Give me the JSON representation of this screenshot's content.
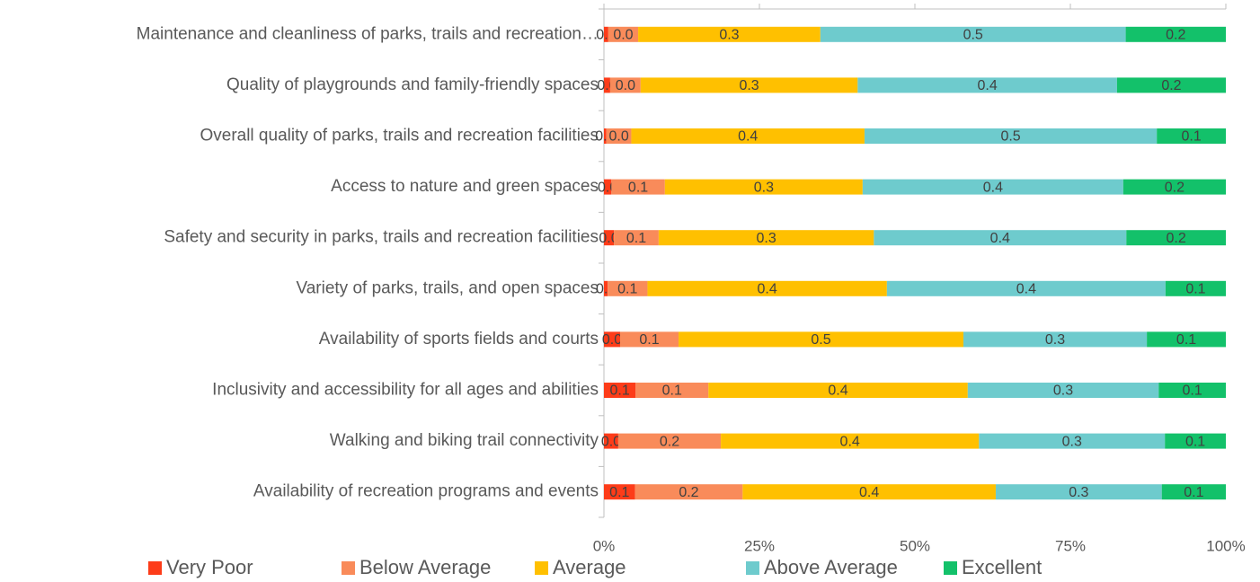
{
  "chart_data": {
    "type": "stacked_barh",
    "categories": [
      "Maintenance and cleanliness of parks, trails and recreation…",
      "Quality of playgrounds and family-friendly spaces",
      "Overall quality of parks, trails and recreation facilities",
      "Access to nature and green spaces",
      "Safety and security in parks, trails and recreation facilities",
      "Variety of parks, trails, and open spaces",
      "Availability of sports fields and courts",
      "Inclusivity and accessibility for all ages and abilities",
      "Walking and biking trail connectivity",
      "Availability of recreation programs and events"
    ],
    "series": [
      {
        "name": "Very Poor",
        "color": "#fd3c19",
        "values": [
          0.007,
          0.01,
          0.004,
          0.012,
          0.016,
          0.006,
          0.026,
          0.051,
          0.023,
          0.05
        ],
        "value_labels": [
          "0.0",
          "0.0",
          "0.0",
          "0.0",
          "0.0",
          "0.0",
          "0.0",
          "0.1",
          "0.0",
          "0.1"
        ]
      },
      {
        "name": "Below Average",
        "color": "#f98b5a",
        "values": [
          0.048,
          0.049,
          0.04,
          0.086,
          0.072,
          0.064,
          0.094,
          0.117,
          0.165,
          0.173
        ],
        "value_labels": [
          "0.0",
          "0.0",
          "0.0",
          "0.1",
          "0.1",
          "0.1",
          "0.1",
          "0.1",
          "0.2",
          "0.2"
        ]
      },
      {
        "name": "Average",
        "color": "#ffc000",
        "values": [
          0.293,
          0.349,
          0.375,
          0.318,
          0.346,
          0.385,
          0.458,
          0.417,
          0.415,
          0.407
        ],
        "value_labels": [
          "0.3",
          "0.3",
          "0.4",
          "0.3",
          "0.3",
          "0.4",
          "0.5",
          "0.4",
          "0.4",
          "0.4"
        ]
      },
      {
        "name": "Above Average",
        "color": "#6ecbcd",
        "values": [
          0.491,
          0.417,
          0.47,
          0.419,
          0.406,
          0.448,
          0.295,
          0.307,
          0.299,
          0.267
        ],
        "value_labels": [
          "0.5",
          "0.4",
          "0.5",
          "0.4",
          "0.4",
          "0.4",
          "0.3",
          "0.3",
          "0.3",
          "0.3"
        ]
      },
      {
        "name": "Excellent",
        "color": "#13c16a",
        "values": [
          0.161,
          0.175,
          0.111,
          0.165,
          0.16,
          0.097,
          0.127,
          0.108,
          0.098,
          0.103
        ],
        "value_labels": [
          "0.2",
          "0.2",
          "0.1",
          "0.2",
          "0.2",
          "0.1",
          "0.1",
          "0.1",
          "0.1",
          "0.1"
        ]
      }
    ],
    "xlim": [
      0,
      1
    ],
    "xticks": [
      {
        "value": 0,
        "label": "0%"
      },
      {
        "value": 0.25,
        "label": "25%"
      },
      {
        "value": 0.5,
        "label": "50%"
      },
      {
        "value": 0.75,
        "label": "75%"
      },
      {
        "value": 1,
        "label": "100%"
      }
    ],
    "legend": "bottom"
  }
}
